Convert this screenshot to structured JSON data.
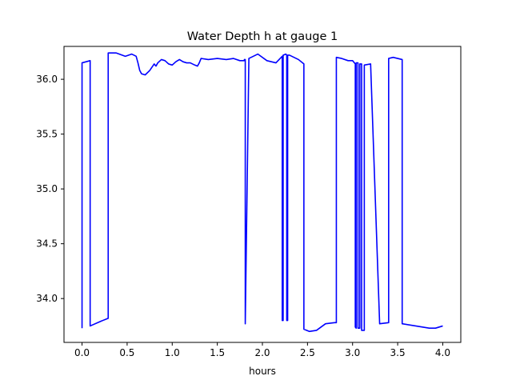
{
  "chart_data": {
    "type": "line",
    "title": "Water Depth h at gauge 1",
    "xlabel": "hours",
    "ylabel": "",
    "xlim": [
      -0.2,
      4.2
    ],
    "ylim": [
      33.6,
      36.3
    ],
    "grid": false,
    "x_ticks": [
      0.0,
      0.5,
      1.0,
      1.5,
      2.0,
      2.5,
      3.0,
      3.5,
      4.0
    ],
    "x_tick_labels": [
      "0.0",
      "0.5",
      "1.0",
      "1.5",
      "2.0",
      "2.5",
      "3.0",
      "3.5",
      "4.0"
    ],
    "y_ticks": [
      34.0,
      34.5,
      35.0,
      35.5,
      36.0
    ],
    "y_tick_labels": [
      "34.0",
      "34.5",
      "35.0",
      "35.5",
      "36.0"
    ],
    "series": [
      {
        "name": "",
        "color": "#0000ff",
        "x": [
          0.0,
          0.0,
          0.09,
          0.09,
          0.2,
          0.29,
          0.29,
          0.38,
          0.48,
          0.55,
          0.6,
          0.62,
          0.64,
          0.66,
          0.7,
          0.75,
          0.8,
          0.82,
          0.84,
          0.88,
          0.92,
          0.96,
          1.0,
          1.04,
          1.08,
          1.12,
          1.16,
          1.2,
          1.25,
          1.28,
          1.3,
          1.32,
          1.4,
          1.5,
          1.6,
          1.68,
          1.75,
          1.8,
          1.8,
          1.81,
          1.81,
          1.85,
          1.95,
          2.05,
          2.15,
          2.22,
          2.22,
          2.23,
          2.23,
          2.26,
          2.27,
          2.27,
          2.28,
          2.28,
          2.3,
          2.35,
          2.4,
          2.46,
          2.46,
          2.52,
          2.6,
          2.7,
          2.8,
          2.82,
          2.82,
          2.88,
          2.95,
          3.0,
          3.03,
          3.03,
          3.04,
          3.04,
          3.06,
          3.06,
          3.08,
          3.08,
          3.1,
          3.1,
          3.13,
          3.13,
          3.2,
          3.3,
          3.4,
          3.4,
          3.45,
          3.5,
          3.55,
          3.55,
          3.7,
          3.85,
          3.92,
          4.0
        ],
        "y": [
          33.73,
          36.15,
          36.17,
          33.75,
          33.79,
          33.82,
          36.24,
          36.24,
          36.21,
          36.23,
          36.21,
          36.15,
          36.08,
          36.05,
          36.04,
          36.08,
          36.14,
          36.12,
          36.15,
          36.18,
          36.17,
          36.14,
          36.13,
          36.16,
          36.18,
          36.16,
          36.15,
          36.15,
          36.13,
          36.12,
          36.15,
          36.19,
          36.18,
          36.19,
          36.18,
          36.19,
          36.17,
          36.17,
          36.18,
          36.18,
          33.77,
          36.19,
          36.23,
          36.17,
          36.15,
          36.21,
          33.8,
          33.8,
          36.22,
          36.23,
          36.22,
          33.8,
          33.8,
          36.22,
          36.22,
          36.2,
          36.18,
          36.14,
          33.72,
          33.7,
          33.71,
          33.77,
          33.78,
          33.78,
          36.2,
          36.19,
          36.17,
          36.17,
          36.14,
          33.74,
          33.73,
          36.15,
          36.15,
          33.73,
          33.73,
          36.14,
          36.14,
          33.71,
          33.71,
          36.13,
          36.14,
          33.77,
          33.78,
          36.19,
          36.2,
          36.19,
          36.18,
          33.77,
          33.75,
          33.73,
          33.73,
          33.75
        ]
      }
    ]
  }
}
